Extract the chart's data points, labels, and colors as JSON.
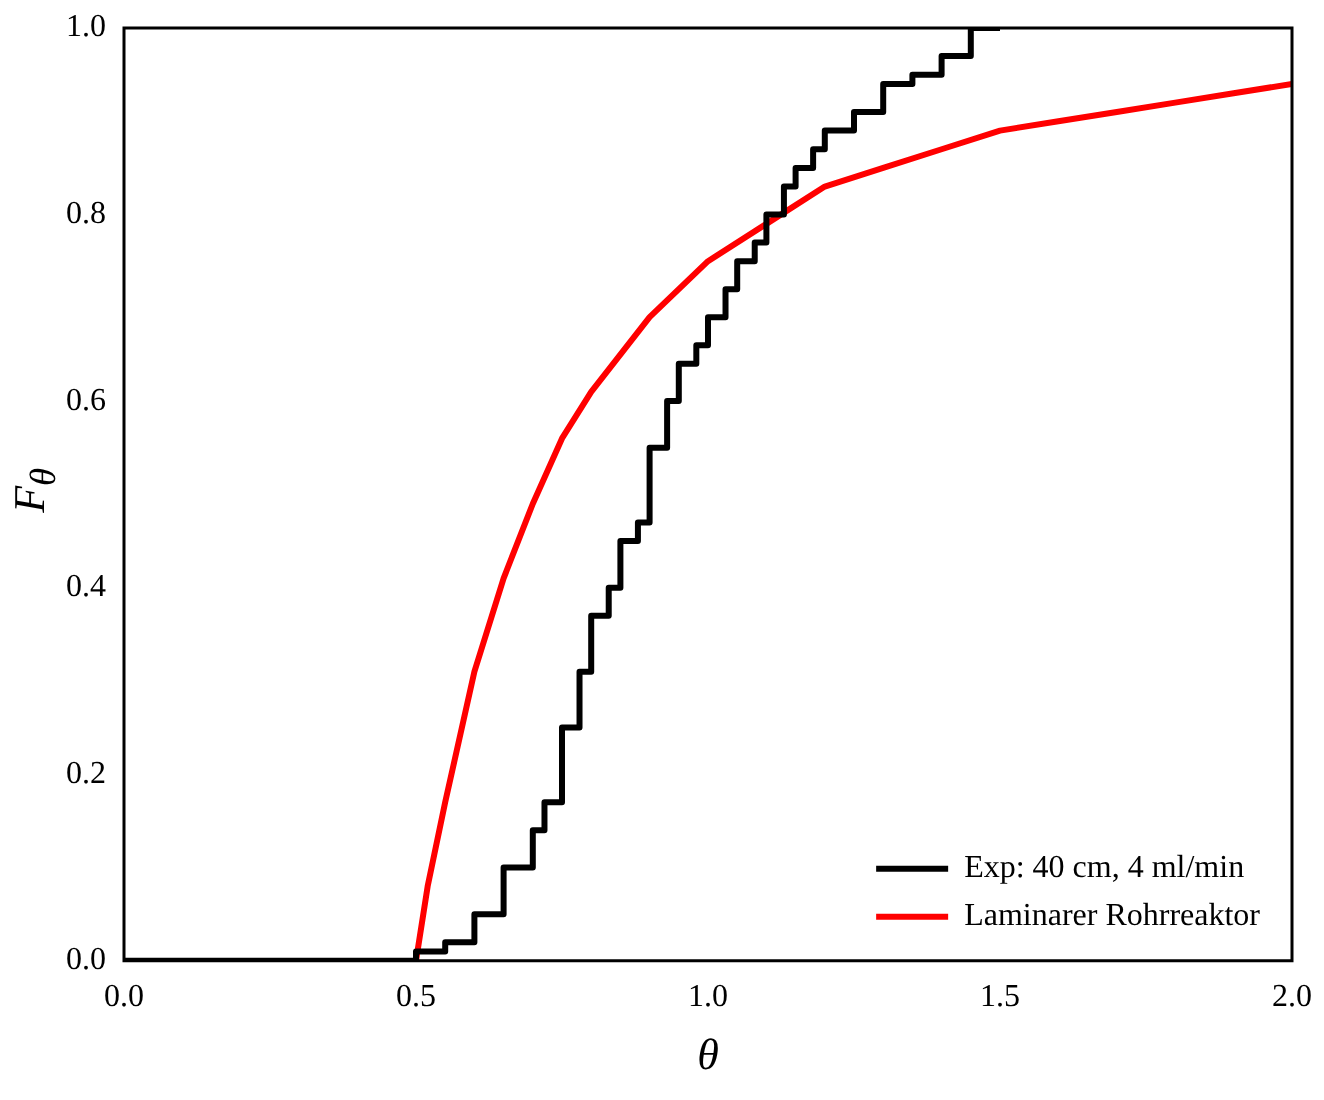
{
  "chart_data": {
    "type": "line",
    "xlabel": "θ",
    "ylabel": "F$_{θ}$",
    "xlim": [
      0,
      2
    ],
    "xticks": [
      {
        "value": 0,
        "label": "0.0"
      },
      {
        "value": 0.5,
        "label": "0.5"
      },
      {
        "value": 1,
        "label": "1.0"
      },
      {
        "value": 1.5,
        "label": "1.5"
      },
      {
        "value": 2,
        "label": "2.0"
      }
    ],
    "ylim": [
      0,
      1
    ],
    "yticks": [
      {
        "value": 0,
        "label": "0.0"
      },
      {
        "value": 0.2,
        "label": "0.2"
      },
      {
        "value": 0.4,
        "label": "0.4"
      },
      {
        "value": 0.6,
        "label": "0.6"
      },
      {
        "value": 0.8,
        "label": "0.8"
      },
      {
        "value": 1,
        "label": "1.0"
      }
    ],
    "legend": "bottom right",
    "grid": false,
    "marker": "none",
    "line_style": "solid",
    "series": [
      {
        "name": "Exp: 40 cm, 4 ml/min",
        "type": "step",
        "color": "#000000",
        "x": [
          0,
          0.5,
          0.55,
          0.6,
          0.65,
          0.7,
          0.72,
          0.75,
          0.78,
          0.8,
          0.83,
          0.85,
          0.88,
          0.9,
          0.93,
          0.95,
          0.98,
          1.0,
          1.03,
          1.05,
          1.08,
          1.1,
          1.13,
          1.15,
          1.18,
          1.2,
          1.25,
          1.3,
          1.35,
          1.4,
          1.45,
          1.5
        ],
        "values": [
          0,
          0,
          0.01,
          0.02,
          0.05,
          0.1,
          0.14,
          0.17,
          0.25,
          0.31,
          0.37,
          0.4,
          0.45,
          0.47,
          0.55,
          0.6,
          0.64,
          0.66,
          0.69,
          0.72,
          0.75,
          0.77,
          0.8,
          0.83,
          0.85,
          0.87,
          0.89,
          0.91,
          0.94,
          0.95,
          0.97,
          1.0
        ]
      },
      {
        "name": "Laminarer Rohrreaktor",
        "type": "line",
        "color": "#ff0000",
        "x": [
          0.5,
          0.52,
          0.55,
          0.6,
          0.65,
          0.7,
          0.75,
          0.8,
          0.9,
          1.0,
          1.1,
          1.2,
          1.3,
          1.4,
          1.5,
          1.6,
          1.7,
          1.8,
          1.9,
          2.0
        ],
        "values": [
          0,
          0.08,
          0.17,
          0.31,
          0.41,
          0.49,
          0.56,
          0.61,
          0.69,
          0.75,
          0.79,
          0.83,
          0.85,
          0.87,
          0.89,
          0.9,
          0.91,
          0.92,
          0.93,
          0.94
        ]
      }
    ]
  }
}
